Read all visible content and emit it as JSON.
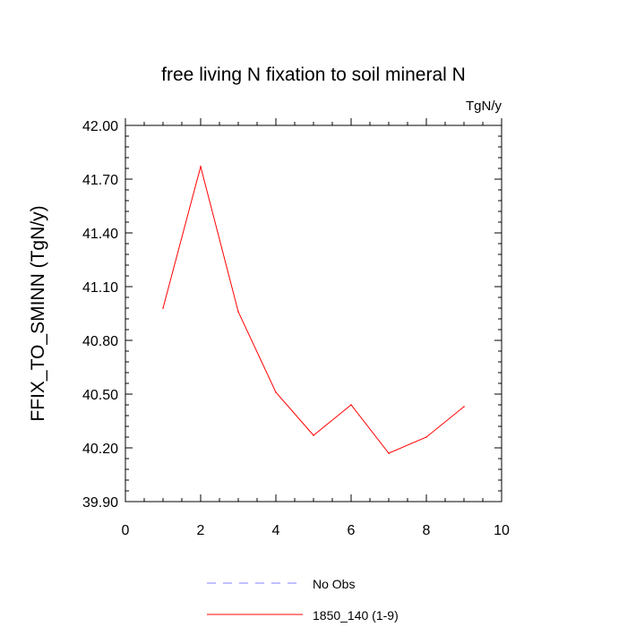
{
  "chart_data": {
    "type": "line",
    "title": "free living N fixation to soil mineral N",
    "units_label": "TgN/y",
    "xlabel": "",
    "ylabel": "FFIX_TO_SMINN  (TgN/y)",
    "xlim": [
      0,
      10
    ],
    "ylim": [
      39.9,
      42.0
    ],
    "x_ticks": [
      0,
      2,
      4,
      6,
      8,
      10
    ],
    "x_tick_labels": [
      "0",
      "2",
      "4",
      "6",
      "8",
      "10"
    ],
    "y_ticks": [
      39.9,
      40.2,
      40.5,
      40.8,
      41.1,
      41.4,
      41.7,
      42.0
    ],
    "y_tick_labels": [
      "39.90",
      "40.20",
      "40.50",
      "40.80",
      "41.10",
      "41.40",
      "41.70",
      "42.00"
    ],
    "grid": false,
    "legend_position": "bottom",
    "series": [
      {
        "name": "1850_140 (1-9)",
        "color": "#ff0000",
        "line_style": "solid",
        "x": [
          1,
          2,
          3,
          4,
          5,
          6,
          7,
          8,
          9
        ],
        "values": [
          40.98,
          41.77,
          40.96,
          40.51,
          40.27,
          40.44,
          40.17,
          40.26,
          40.43
        ]
      }
    ],
    "legend": [
      {
        "name": "No Obs",
        "color": "#8080ff",
        "line_style": "dashed"
      },
      {
        "name": "1850_140 (1-9)",
        "color": "#ff0000",
        "line_style": "solid"
      }
    ]
  }
}
